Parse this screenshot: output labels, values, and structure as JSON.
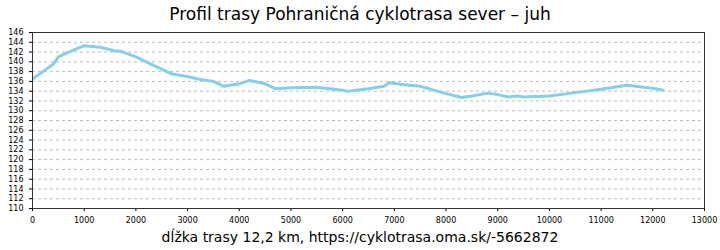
{
  "chart_data": {
    "type": "line",
    "title": "Profil trasy Pohraničná cyklotrasa sever – juh",
    "x_label": "dĺžka trasy 12,2 km, https://cyklotrasa.oma.sk/-5662872",
    "x": [
      0,
      200,
      400,
      500,
      700,
      1000,
      1300,
      1600,
      1700,
      2000,
      2300,
      2700,
      3000,
      3200,
      3500,
      3700,
      4000,
      4200,
      4500,
      4700,
      5000,
      5500,
      6000,
      6100,
      6500,
      6800,
      6900,
      7200,
      7500,
      8000,
      8300,
      8500,
      8800,
      9000,
      9200,
      9400,
      9500,
      10000,
      10500,
      11000,
      11500,
      12000,
      12200
    ],
    "values": [
      136.5,
      138,
      139.5,
      141,
      142,
      143.3,
      143,
      142.2,
      142.2,
      141,
      139.5,
      137.5,
      137,
      136.5,
      136,
      135,
      135.5,
      136.2,
      135.5,
      134.5,
      134.7,
      134.8,
      134.2,
      134,
      134.5,
      135,
      135.7,
      135.3,
      135,
      133.5,
      132.7,
      133,
      133.6,
      133.3,
      132.8,
      133,
      132.8,
      133,
      133.7,
      134.4,
      135.2,
      134.6,
      134.2
    ],
    "color": "#87CEEB",
    "xlim": [
      0,
      13000
    ],
    "xticks": [
      0,
      1000,
      2000,
      3000,
      4000,
      5000,
      6000,
      7000,
      8000,
      9000,
      10000,
      11000,
      12000,
      13000
    ],
    "ylim": [
      110,
      146
    ],
    "yticks": [
      110,
      112,
      114,
      116,
      118,
      120,
      122,
      124,
      126,
      128,
      130,
      132,
      134,
      136,
      138,
      140,
      142,
      144,
      146
    ],
    "grid": true
  }
}
